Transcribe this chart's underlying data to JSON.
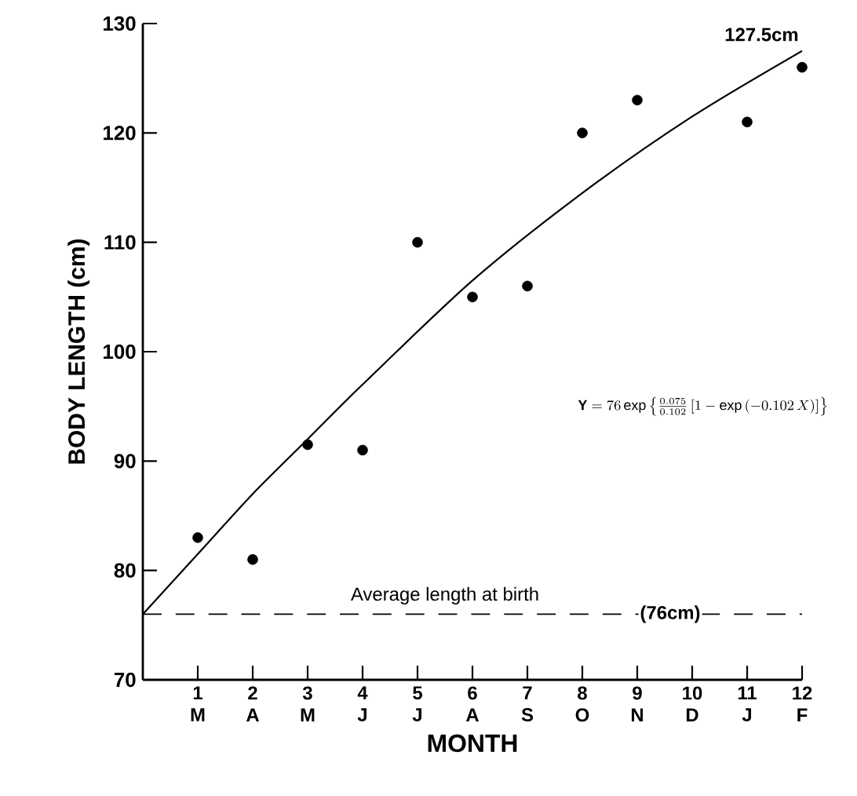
{
  "chart_data": {
    "type": "scatter",
    "xlabel": "MONTH",
    "ylabel": "BODY LENGTH (cm)",
    "xlim": [
      0,
      12
    ],
    "ylim": [
      70,
      130
    ],
    "xticks": [
      {
        "value": 1,
        "label": "1 M"
      },
      {
        "value": 2,
        "label": "2 A"
      },
      {
        "value": 3,
        "label": "3 M"
      },
      {
        "value": 4,
        "label": "4 J"
      },
      {
        "value": 5,
        "label": "5 J"
      },
      {
        "value": 6,
        "label": "6 A"
      },
      {
        "value": 7,
        "label": "7 S"
      },
      {
        "value": 8,
        "label": "8 O"
      },
      {
        "value": 9,
        "label": "9 N"
      },
      {
        "value": 10,
        "label": "10 D"
      },
      {
        "value": 11,
        "label": "11 J"
      },
      {
        "value": 12,
        "label": "12 F"
      }
    ],
    "yticks": [
      70,
      80,
      90,
      100,
      110,
      120,
      130
    ],
    "grid": false,
    "series": [
      {
        "marker": "circle",
        "color": "#000000",
        "x": [
          1,
          2,
          3,
          4,
          5,
          6,
          7,
          8,
          9,
          11,
          12
        ],
        "values": [
          83,
          81,
          91.5,
          91,
          110,
          105,
          106,
          120,
          123,
          121,
          126
        ]
      },
      {
        "type": "line",
        "marker": "none",
        "line_style": "solid",
        "color": "#000000",
        "x": [
          0,
          1,
          2,
          3,
          4,
          6,
          8,
          10,
          12
        ],
        "values": [
          76,
          81.5,
          87,
          92,
          97,
          106.5,
          114.5,
          121.5,
          127.5
        ]
      }
    ],
    "ref_lines": [
      {
        "axis": "y",
        "value": 76,
        "label": "(76cm)",
        "line_style": "dashed",
        "color": "#000000"
      }
    ],
    "annotations": [
      {
        "text": "127.5cm",
        "x": 12,
        "y": 127.5
      },
      {
        "text": "Average length at birth",
        "x": 5.5,
        "y": 76
      },
      "\\mathbf{Y} = 76\\,\\mathrm{exp}\\left\\{\\frac{0.075}{0.102}\\left[1-\\mathrm{exp}\\,(-0.102\\,X)\\right]\\right\\}"
    ]
  }
}
